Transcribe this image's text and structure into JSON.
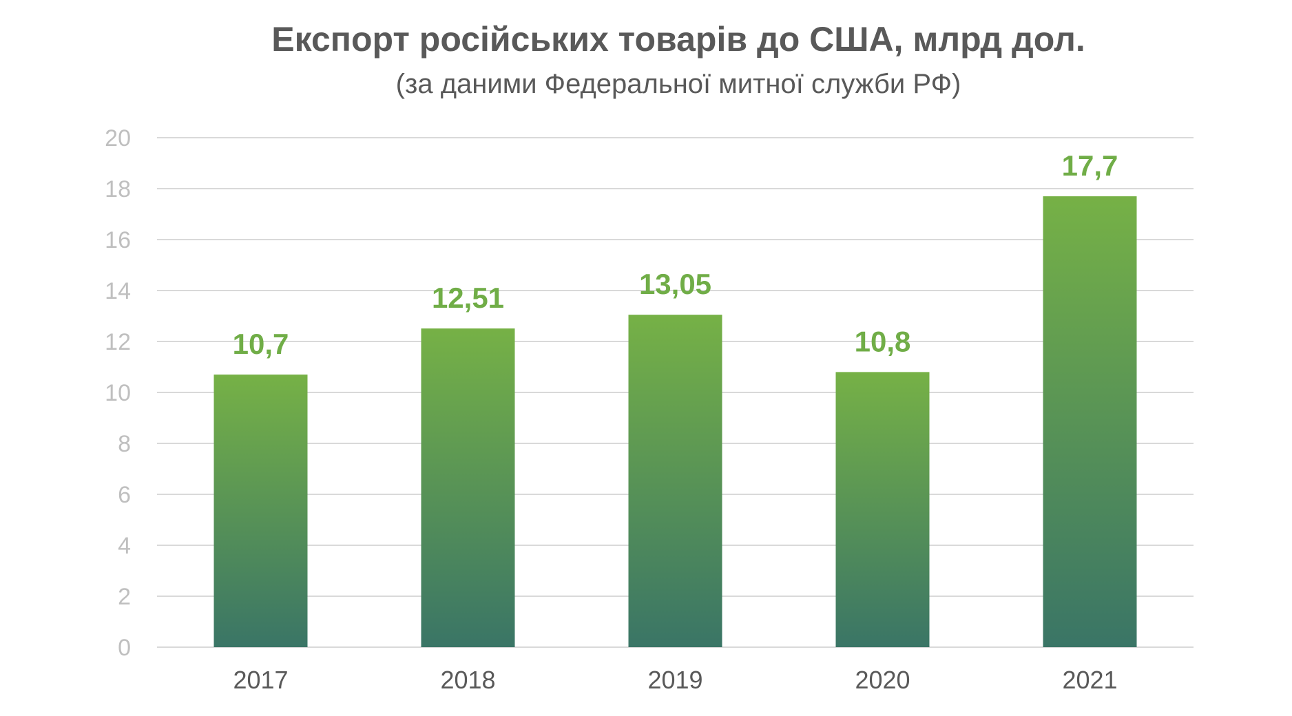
{
  "chart_data": {
    "type": "bar",
    "title": "Експорт російських товарів до США, млрд дол.",
    "subtitle": "(за даними Федеральної митної служби РФ)",
    "xlabel": "",
    "ylabel": "",
    "categories": [
      "2017",
      "2018",
      "2019",
      "2020",
      "2021"
    ],
    "values": [
      10.7,
      12.51,
      13.05,
      10.8,
      17.7
    ],
    "data_labels": [
      "10,7",
      "12,51",
      "13,05",
      "10,8",
      "17,7"
    ],
    "ylim": [
      0,
      20
    ],
    "yticks": [
      0,
      2,
      4,
      6,
      8,
      10,
      12,
      14,
      16,
      18,
      20
    ],
    "grid": true,
    "legend": "none",
    "colors": {
      "bar_top": "#76b146",
      "bar_bottom": "#3a7566",
      "data_label": "#70ad47",
      "gridline": "#d9d9d9",
      "title": "#595959",
      "tick_label": "#bfbfbf",
      "category_label": "#595959"
    }
  }
}
